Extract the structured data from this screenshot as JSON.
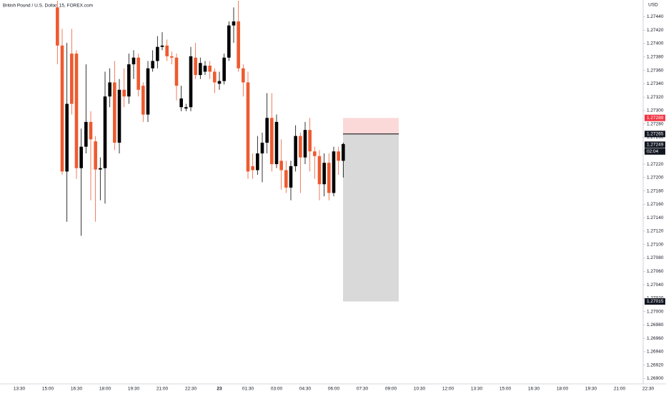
{
  "chart_data": {
    "type": "candlestick",
    "title": "British Pound / U.S. Dollar, 15, FOREX.com",
    "currency": "USD",
    "up_color": "#000000",
    "down_color": "#ee5a2f",
    "open": [
      1.27454,
      1.27397,
      1.27209,
      1.27385,
      1.27385,
      1.27214,
      1.27246,
      1.27283,
      1.27254,
      1.27212,
      1.27214,
      1.27321,
      1.27342,
      1.27252,
      1.27331,
      1.27321,
      1.27369,
      1.27379,
      1.27337,
      1.27294,
      1.27363,
      1.27374,
      1.27395,
      1.27397,
      1.27381,
      1.27379,
      1.27305,
      1.27303,
      1.27305,
      1.27379,
      1.27353,
      1.27358,
      1.27367,
      1.27358,
      1.2734,
      1.27344,
      1.27379,
      1.27427,
      1.27433,
      1.27363,
      1.27342,
      1.27217,
      1.27211,
      1.27236,
      1.27252,
      1.27289,
      1.2722,
      1.27225,
      1.27211,
      1.27185,
      1.27217,
      1.27262,
      1.2723,
      1.27271,
      1.27239,
      1.27232,
      1.2719,
      1.27222,
      1.27177,
      1.27239,
      1.27225
    ],
    "high": [
      1.27464,
      1.27422,
      1.27401,
      1.27422,
      1.2739,
      1.27273,
      1.27369,
      1.27299,
      1.27262,
      1.2723,
      1.27358,
      1.27363,
      1.27374,
      1.27347,
      1.27363,
      1.27385,
      1.2739,
      1.27385,
      1.27342,
      1.27374,
      1.2739,
      1.27411,
      1.27417,
      1.27406,
      1.27388,
      1.27385,
      1.27337,
      1.2731,
      1.27395,
      1.27401,
      1.27379,
      1.27374,
      1.27374,
      1.27363,
      1.27358,
      1.27385,
      1.27433,
      1.27454,
      1.27464,
      1.27369,
      1.27358,
      1.27236,
      1.27262,
      1.27267,
      1.27326,
      1.27326,
      1.27294,
      1.27257,
      1.27225,
      1.27225,
      1.27278,
      1.27267,
      1.27283,
      1.27289,
      1.27246,
      1.27241,
      1.27236,
      1.27236,
      1.27246,
      1.27246,
      1.27252
    ],
    "low": [
      1.27369,
      1.27204,
      1.27134,
      1.27294,
      1.27198,
      1.27113,
      1.27236,
      1.27166,
      1.27134,
      1.27166,
      1.27161,
      1.27305,
      1.27241,
      1.27236,
      1.27305,
      1.2731,
      1.27347,
      1.27321,
      1.27283,
      1.27283,
      1.27358,
      1.27363,
      1.2739,
      1.27374,
      1.27369,
      1.27315,
      1.27299,
      1.27299,
      1.27299,
      1.27347,
      1.27347,
      1.27353,
      1.27347,
      1.27326,
      1.27331,
      1.27339,
      1.27374,
      1.27401,
      1.27358,
      1.27321,
      1.27198,
      1.27198,
      1.27204,
      1.27193,
      1.27236,
      1.27209,
      1.27214,
      1.27182,
      1.27177,
      1.27166,
      1.27209,
      1.27177,
      1.2722,
      1.27209,
      1.27198,
      1.27166,
      1.27172,
      1.27166,
      1.27172,
      1.27204,
      1.272
    ],
    "close": [
      1.27397,
      1.27209,
      1.2731,
      1.2731,
      1.27214,
      1.27246,
      1.27283,
      1.27257,
      1.27212,
      1.27214,
      1.27321,
      1.27342,
      1.27252,
      1.27331,
      1.27321,
      1.27369,
      1.27379,
      1.27331,
      1.27294,
      1.27363,
      1.27374,
      1.27395,
      1.27397,
      1.27381,
      1.27379,
      1.27337,
      1.27318,
      1.27305,
      1.27381,
      1.27353,
      1.27371,
      1.27367,
      1.27358,
      1.27342,
      1.27344,
      1.27379,
      1.27427,
      1.27433,
      1.27363,
      1.27342,
      1.27209,
      1.27211,
      1.27236,
      1.27252,
      1.27289,
      1.2722,
      1.27283,
      1.27211,
      1.27185,
      1.27217,
      1.27262,
      1.2723,
      1.27271,
      1.27239,
      1.27232,
      1.2719,
      1.27222,
      1.27177,
      1.27239,
      1.27225,
      1.2725
    ],
    "ylim": [
      1.26892,
      1.27465
    ],
    "yticks": [
      {
        "value": 1.269,
        "label": "1.26900"
      },
      {
        "value": 1.2692,
        "label": "1.26920"
      },
      {
        "value": 1.2694,
        "label": "1.26940"
      },
      {
        "value": 1.2696,
        "label": "1.26960"
      },
      {
        "value": 1.2698,
        "label": "1.26980"
      },
      {
        "value": 1.27,
        "label": "1.27000"
      },
      {
        "value": 1.2702,
        "label": "1.27020"
      },
      {
        "value": 1.2704,
        "label": "1.27040"
      },
      {
        "value": 1.2706,
        "label": "1.27060"
      },
      {
        "value": 1.2708,
        "label": "1.27080"
      },
      {
        "value": 1.271,
        "label": "1.27100"
      },
      {
        "value": 1.2712,
        "label": "1.27120"
      },
      {
        "value": 1.2714,
        "label": "1.27140"
      },
      {
        "value": 1.2716,
        "label": "1.27160"
      },
      {
        "value": 1.2718,
        "label": "1.27180"
      },
      {
        "value": 1.272,
        "label": "1.27200"
      },
      {
        "value": 1.2722,
        "label": "1.27220"
      },
      {
        "value": 1.2724,
        "label": "1.27240"
      },
      {
        "value": 1.2726,
        "label": "1.27260"
      },
      {
        "value": 1.2728,
        "label": "1.27280"
      },
      {
        "value": 1.273,
        "label": "1.27300"
      },
      {
        "value": 1.2732,
        "label": "1.27320"
      },
      {
        "value": 1.2734,
        "label": "1.27340"
      },
      {
        "value": 1.2736,
        "label": "1.27360"
      },
      {
        "value": 1.2738,
        "label": "1.27380"
      },
      {
        "value": 1.274,
        "label": "1.27400"
      },
      {
        "value": 1.2742,
        "label": "1.27420"
      },
      {
        "value": 1.2744,
        "label": "1.27440"
      }
    ],
    "xticks": [
      "13:30",
      "15:00",
      "16:30",
      "18:00",
      "19:30",
      "21:00",
      "22:30",
      "23",
      "01:30",
      "03:00",
      "04:30",
      "06:00",
      "07:30",
      "09:00",
      "10:30",
      "12:00",
      "13:30",
      "15:00",
      "16:30",
      "18:00",
      "19:30",
      "21:00",
      "22:30"
    ],
    "position": {
      "stop": 1.27289,
      "entry": 1.27265,
      "target": 1.27015
    },
    "last_price": 1.27249,
    "countdown": "02:04"
  }
}
